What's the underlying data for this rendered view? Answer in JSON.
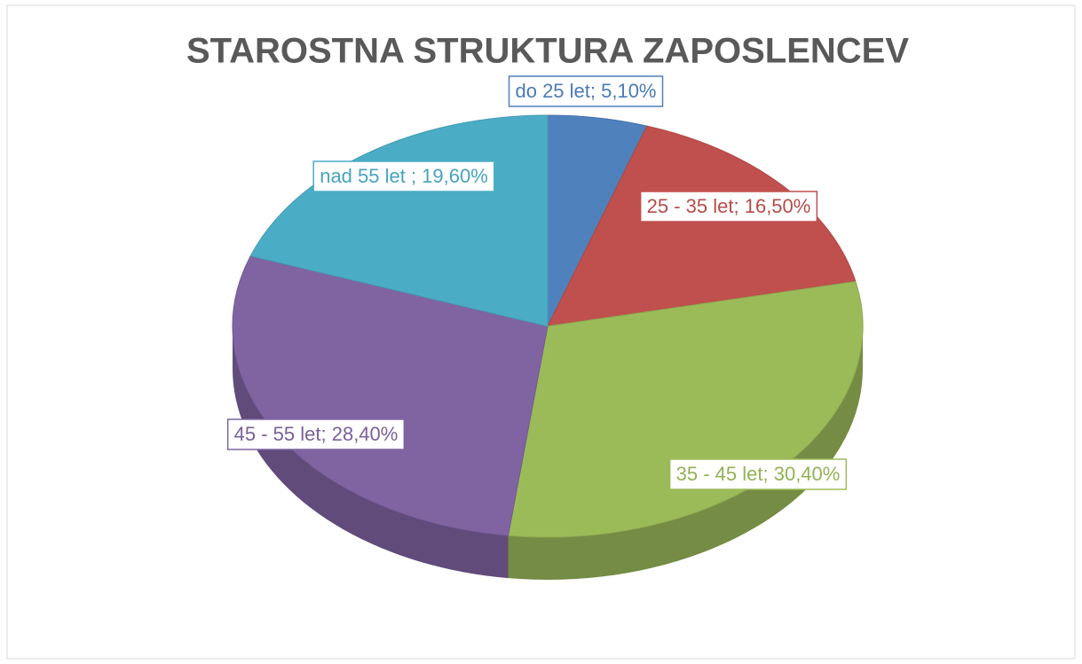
{
  "chart_data": {
    "type": "pie3d",
    "title": "STAROSTNA STRUKTURA ZAPOSLENCEV",
    "values": [
      5.1,
      16.5,
      30.4,
      28.4,
      19.6
    ],
    "value_labels": [
      "do 25 let; 5,10%",
      "25 - 35 let; 16,50%",
      "35 - 45 let; 30,40%",
      "45 - 55 let; 28,40%",
      "nad 55 let ; 19,60%"
    ],
    "colors": [
      "#4f81bd",
      "#c0504d",
      "#9bbb59",
      "#8064a2",
      "#4bacc6"
    ]
  }
}
